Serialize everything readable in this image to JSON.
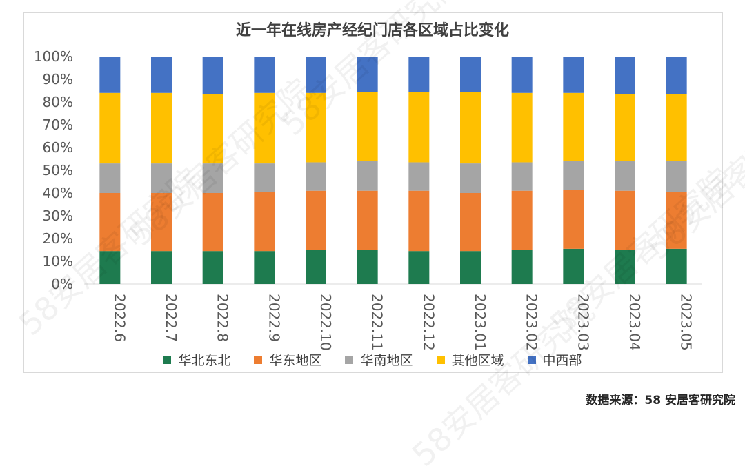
{
  "chart_data": {
    "type": "bar",
    "stacked": true,
    "percent": true,
    "title": "近一年在线房产经纪门店各区域占比变化",
    "xlabel": "",
    "ylabel": "",
    "ylim": [
      0,
      100
    ],
    "yticks": [
      "0%",
      "10%",
      "20%",
      "30%",
      "40%",
      "50%",
      "60%",
      "70%",
      "80%",
      "90%",
      "100%"
    ],
    "categories": [
      "2022.6",
      "2022.7",
      "2022.8",
      "2022.9",
      "2022.10",
      "2022.11",
      "2022.12",
      "2023.01",
      "2023.02",
      "2023.03",
      "2023.04",
      "2023.05"
    ],
    "series": [
      {
        "name": "华北东北",
        "color": "#1e7b4f",
        "values": [
          14.5,
          14.5,
          14.5,
          14.5,
          15.0,
          15.0,
          14.5,
          14.5,
          15.0,
          15.5,
          15.0,
          15.5
        ]
      },
      {
        "name": "华东地区",
        "color": "#ed7d31",
        "values": [
          25.5,
          25.5,
          25.5,
          26.0,
          26.0,
          26.0,
          26.5,
          25.5,
          26.0,
          26.0,
          26.0,
          25.0
        ]
      },
      {
        "name": "华南地区",
        "color": "#a5a5a5",
        "values": [
          13.0,
          13.0,
          13.0,
          12.5,
          12.5,
          13.0,
          12.5,
          13.0,
          12.5,
          12.5,
          13.0,
          13.5
        ]
      },
      {
        "name": "其他区域",
        "color": "#ffc000",
        "values": [
          31.0,
          31.0,
          30.5,
          31.0,
          30.5,
          30.5,
          31.0,
          31.5,
          30.5,
          30.0,
          29.5,
          29.5
        ]
      },
      {
        "name": "中西部",
        "color": "#4472c4",
        "values": [
          16.0,
          16.0,
          16.5,
          16.0,
          16.0,
          15.5,
          15.5,
          15.5,
          16.0,
          16.0,
          16.5,
          16.5
        ]
      }
    ],
    "legend_position": "bottom",
    "grid": false
  },
  "source_note": "数据来源：58 安居客研究院",
  "watermark_text": "58安居客研究院"
}
